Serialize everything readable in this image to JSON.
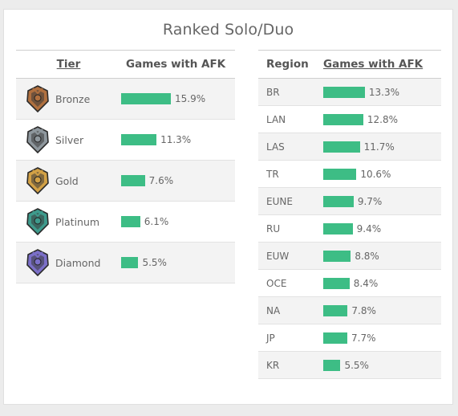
{
  "title": "Ranked Solo/Duo",
  "colors": {
    "bar": "#3dbd85"
  },
  "tier_table": {
    "headers": [
      "Tier",
      "Games with AFK"
    ],
    "rows": [
      {
        "name": "Bronze",
        "value": 15.9,
        "label": "15.9%",
        "icon": "bronze-emblem-icon",
        "color": "#b0703f"
      },
      {
        "name": "Silver",
        "value": 11.3,
        "label": "11.3%",
        "icon": "silver-emblem-icon",
        "color": "#8e979d"
      },
      {
        "name": "Gold",
        "value": 7.6,
        "label": "7.6%",
        "icon": "gold-emblem-icon",
        "color": "#d2a146"
      },
      {
        "name": "Platinum",
        "value": 6.1,
        "label": "6.1%",
        "icon": "platinum-emblem-icon",
        "color": "#3e9a8c"
      },
      {
        "name": "Diamond",
        "value": 5.5,
        "label": "5.5%",
        "icon": "diamond-emblem-icon",
        "color": "#7b6fc8"
      }
    ]
  },
  "region_table": {
    "headers": [
      "Region",
      "Games with AFK"
    ],
    "rows": [
      {
        "name": "BR",
        "value": 13.3,
        "label": "13.3%"
      },
      {
        "name": "LAN",
        "value": 12.8,
        "label": "12.8%"
      },
      {
        "name": "LAS",
        "value": 11.7,
        "label": "11.7%"
      },
      {
        "name": "TR",
        "value": 10.6,
        "label": "10.6%"
      },
      {
        "name": "EUNE",
        "value": 9.7,
        "label": "9.7%"
      },
      {
        "name": "RU",
        "value": 9.4,
        "label": "9.4%"
      },
      {
        "name": "EUW",
        "value": 8.8,
        "label": "8.8%"
      },
      {
        "name": "OCE",
        "value": 8.4,
        "label": "8.4%"
      },
      {
        "name": "NA",
        "value": 7.8,
        "label": "7.8%"
      },
      {
        "name": "JP",
        "value": 7.7,
        "label": "7.7%"
      },
      {
        "name": "KR",
        "value": 5.5,
        "label": "5.5%"
      }
    ]
  },
  "chart_data": [
    {
      "type": "bar",
      "categories": [
        "Bronze",
        "Silver",
        "Gold",
        "Platinum",
        "Diamond"
      ],
      "series": [
        {
          "name": "Games with AFK",
          "values": [
            15.9,
            11.3,
            7.6,
            6.1,
            5.5
          ]
        }
      ],
      "title": "Ranked Solo/Duo",
      "xlabel": "Tier",
      "ylabel": "Games with AFK"
    },
    {
      "type": "bar",
      "categories": [
        "BR",
        "LAN",
        "LAS",
        "TR",
        "EUNE",
        "RU",
        "EUW",
        "OCE",
        "NA",
        "JP",
        "KR"
      ],
      "series": [
        {
          "name": "Games with AFK",
          "values": [
            13.3,
            12.8,
            11.7,
            10.6,
            9.7,
            9.4,
            8.8,
            8.4,
            7.8,
            7.7,
            5.5
          ]
        }
      ],
      "xlabel": "Region",
      "ylabel": "Games with AFK"
    }
  ]
}
